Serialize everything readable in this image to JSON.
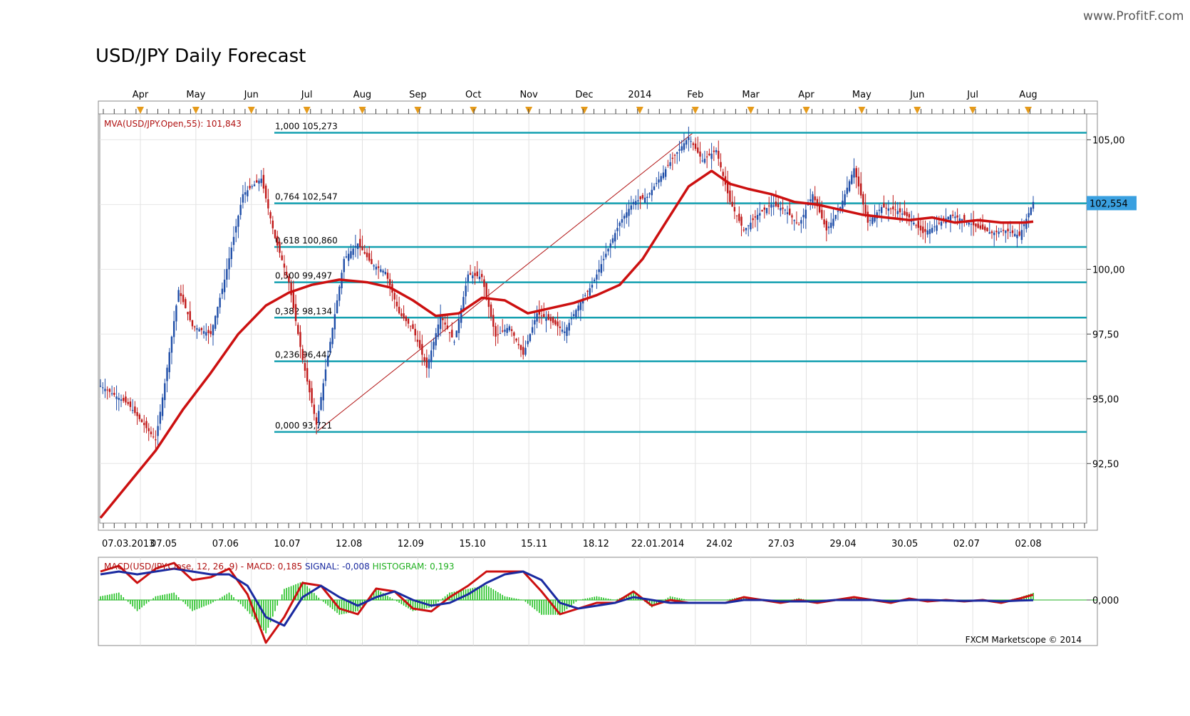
{
  "watermark": "www.ProfitF.com",
  "title": "USD/JPY Daily Forecast",
  "footer": "FXCM Marketscope © 2014",
  "colors": {
    "fib_line": "#14a0b0",
    "mva": "#cc1010",
    "candle_up": "#1f4ea8",
    "candle_down": "#c01818",
    "macd": "#cc1010",
    "signal": "#1a2aa0",
    "histogram": "#20c020",
    "month_marker": "#e59a1a",
    "price_badge": "#3aa0e0"
  },
  "chart_data": {
    "type": "candlestick",
    "title": "USD/JPY Daily Forecast",
    "indicator_label": "MVA(USD/JPY.Open,55): 101,843",
    "month_labels": [
      "Apr",
      "May",
      "Jun",
      "Jul",
      "Aug",
      "Sep",
      "Oct",
      "Nov",
      "Dec",
      "2014",
      "Feb",
      "Mar",
      "Apr",
      "May",
      "Jun",
      "Jul",
      "Aug"
    ],
    "date_labels": [
      "07.03.2013",
      "07.05",
      "07.06",
      "10.07",
      "12.08",
      "12.09",
      "15.10",
      "15.11",
      "18.12",
      "22.01.2014",
      "24.02",
      "27.03",
      "29.04",
      "30.05",
      "02.07",
      "02.08"
    ],
    "y_ticks": [
      "105,00",
      "102,50",
      "100,00",
      "97,50",
      "95,00",
      "92,50"
    ],
    "y_tick_values": [
      105.0,
      102.5,
      100.0,
      97.5,
      95.0,
      92.5
    ],
    "ylim": [
      90.2,
      106.0
    ],
    "current_price_label": "102,554",
    "current_price": 102.554,
    "fib_levels": [
      {
        "label": "1,000 105,273",
        "value": 105.273
      },
      {
        "label": "0,764 102,547",
        "value": 102.547
      },
      {
        "label": "0,618 100,860",
        "value": 100.86
      },
      {
        "label": "0,500 99,497",
        "value": 99.497
      },
      {
        "label": "0,382 98,134",
        "value": 98.134
      },
      {
        "label": "0,236 96,447",
        "value": 96.447
      },
      {
        "label": "0,000 93,721",
        "value": 93.721
      }
    ],
    "price_path": [
      [
        0,
        95.5
      ],
      [
        6,
        94.8
      ],
      [
        12,
        93.4
      ],
      [
        14,
        95.6
      ],
      [
        17,
        99.2
      ],
      [
        20,
        97.8
      ],
      [
        24,
        97.5
      ],
      [
        27,
        99.6
      ],
      [
        31,
        102.9
      ],
      [
        35,
        103.5
      ],
      [
        38,
        101.2
      ],
      [
        41,
        99.5
      ],
      [
        44,
        96.5
      ],
      [
        47,
        94.0
      ],
      [
        50,
        97.2
      ],
      [
        53,
        100.4
      ],
      [
        56,
        101.0
      ],
      [
        59,
        100.2
      ],
      [
        62,
        99.9
      ],
      [
        65,
        98.3
      ],
      [
        68,
        97.7
      ],
      [
        71,
        96.2
      ],
      [
        74,
        98.2
      ],
      [
        77,
        97.2
      ],
      [
        80,
        99.8
      ],
      [
        83,
        99.7
      ],
      [
        86,
        97.4
      ],
      [
        89,
        97.8
      ],
      [
        92,
        96.7
      ],
      [
        95,
        98.3
      ],
      [
        98,
        98.0
      ],
      [
        101,
        97.6
      ],
      [
        104,
        98.6
      ],
      [
        107,
        99.4
      ],
      [
        110,
        100.6
      ],
      [
        113,
        101.8
      ],
      [
        116,
        102.6
      ],
      [
        119,
        102.8
      ],
      [
        122,
        103.6
      ],
      [
        125,
        104.4
      ],
      [
        128,
        105.1
      ],
      [
        131,
        104.2
      ],
      [
        134,
        104.6
      ],
      [
        137,
        102.6
      ],
      [
        140,
        101.5
      ],
      [
        143,
        102.1
      ],
      [
        146,
        102.5
      ],
      [
        149,
        102.3
      ],
      [
        152,
        101.7
      ],
      [
        155,
        102.9
      ],
      [
        158,
        101.5
      ],
      [
        161,
        102.4
      ],
      [
        164,
        103.9
      ],
      [
        167,
        101.8
      ],
      [
        170,
        102.4
      ],
      [
        173,
        102.3
      ],
      [
        176,
        102.0
      ],
      [
        179,
        101.4
      ],
      [
        182,
        101.7
      ],
      [
        185,
        102.1
      ],
      [
        188,
        101.9
      ],
      [
        191,
        101.6
      ],
      [
        194,
        101.4
      ],
      [
        197,
        101.5
      ],
      [
        200,
        101.3
      ],
      [
        203,
        102.6
      ]
    ],
    "mva_path": [
      [
        0,
        90.4
      ],
      [
        6,
        91.7
      ],
      [
        12,
        93.0
      ],
      [
        18,
        94.6
      ],
      [
        24,
        96.0
      ],
      [
        30,
        97.5
      ],
      [
        36,
        98.6
      ],
      [
        41,
        99.1
      ],
      [
        46,
        99.4
      ],
      [
        52,
        99.6
      ],
      [
        58,
        99.5
      ],
      [
        63,
        99.3
      ],
      [
        68,
        98.8
      ],
      [
        73,
        98.2
      ],
      [
        78,
        98.3
      ],
      [
        83,
        98.9
      ],
      [
        88,
        98.8
      ],
      [
        93,
        98.3
      ],
      [
        98,
        98.5
      ],
      [
        103,
        98.7
      ],
      [
        108,
        99.0
      ],
      [
        113,
        99.4
      ],
      [
        118,
        100.4
      ],
      [
        123,
        101.8
      ],
      [
        128,
        103.2
      ],
      [
        133,
        103.8
      ],
      [
        137,
        103.3
      ],
      [
        141,
        103.1
      ],
      [
        146,
        102.9
      ],
      [
        151,
        102.6
      ],
      [
        156,
        102.5
      ],
      [
        161,
        102.3
      ],
      [
        166,
        102.1
      ],
      [
        171,
        102.0
      ],
      [
        176,
        101.9
      ],
      [
        181,
        102.0
      ],
      [
        186,
        101.8
      ],
      [
        191,
        101.9
      ],
      [
        196,
        101.8
      ],
      [
        201,
        101.8
      ],
      [
        203,
        101.84
      ]
    ],
    "macd": {
      "label": "MACD(USD/JPY.Close, 12, 26, 9) -",
      "macd_text": "MACD: 0,185",
      "signal_text": "SIGNAL: -0,008",
      "histogram_text": "HISTOGRAM: 0,193",
      "zero_label": "0,000",
      "ylim": [
        -1.6,
        1.5
      ],
      "macd_path": [
        [
          0,
          1.0
        ],
        [
          4,
          1.2
        ],
        [
          8,
          0.6
        ],
        [
          12,
          1.1
        ],
        [
          16,
          1.3
        ],
        [
          20,
          0.7
        ],
        [
          24,
          0.8
        ],
        [
          28,
          1.1
        ],
        [
          32,
          0.2
        ],
        [
          36,
          -1.5
        ],
        [
          40,
          -0.6
        ],
        [
          44,
          0.6
        ],
        [
          48,
          0.5
        ],
        [
          52,
          -0.3
        ],
        [
          56,
          -0.5
        ],
        [
          60,
          0.4
        ],
        [
          64,
          0.3
        ],
        [
          68,
          -0.3
        ],
        [
          72,
          -0.4
        ],
        [
          76,
          0.1
        ],
        [
          80,
          0.5
        ],
        [
          84,
          1.0
        ],
        [
          88,
          1.0
        ],
        [
          92,
          1.0
        ],
        [
          96,
          0.3
        ],
        [
          100,
          -0.5
        ],
        [
          104,
          -0.3
        ],
        [
          108,
          -0.1
        ],
        [
          112,
          -0.1
        ],
        [
          116,
          0.3
        ],
        [
          120,
          -0.2
        ],
        [
          124,
          0.0
        ],
        [
          128,
          -0.1
        ],
        [
          132,
          -0.1
        ],
        [
          136,
          -0.1
        ],
        [
          140,
          0.1
        ],
        [
          144,
          0.0
        ],
        [
          148,
          -0.1
        ],
        [
          152,
          0.0
        ],
        [
          156,
          -0.1
        ],
        [
          160,
          0.0
        ],
        [
          164,
          0.1
        ],
        [
          168,
          0.0
        ],
        [
          172,
          -0.1
        ],
        [
          176,
          0.05
        ],
        [
          180,
          -0.05
        ],
        [
          184,
          0.0
        ],
        [
          188,
          -0.05
        ],
        [
          192,
          0.0
        ],
        [
          196,
          -0.1
        ],
        [
          200,
          0.05
        ],
        [
          203,
          0.185
        ]
      ],
      "signal_path": [
        [
          0,
          0.9
        ],
        [
          4,
          1.0
        ],
        [
          8,
          0.9
        ],
        [
          12,
          1.0
        ],
        [
          16,
          1.1
        ],
        [
          20,
          1.0
        ],
        [
          24,
          0.9
        ],
        [
          28,
          0.9
        ],
        [
          32,
          0.5
        ],
        [
          36,
          -0.6
        ],
        [
          40,
          -0.9
        ],
        [
          44,
          0.1
        ],
        [
          48,
          0.5
        ],
        [
          52,
          0.1
        ],
        [
          56,
          -0.2
        ],
        [
          60,
          0.1
        ],
        [
          64,
          0.3
        ],
        [
          68,
          0.0
        ],
        [
          72,
          -0.2
        ],
        [
          76,
          -0.1
        ],
        [
          80,
          0.2
        ],
        [
          84,
          0.6
        ],
        [
          88,
          0.9
        ],
        [
          92,
          1.0
        ],
        [
          96,
          0.7
        ],
        [
          100,
          -0.1
        ],
        [
          104,
          -0.3
        ],
        [
          108,
          -0.2
        ],
        [
          112,
          -0.1
        ],
        [
          116,
          0.1
        ],
        [
          120,
          0.0
        ],
        [
          124,
          -0.1
        ],
        [
          128,
          -0.1
        ],
        [
          132,
          -0.1
        ],
        [
          136,
          -0.1
        ],
        [
          140,
          0.0
        ],
        [
          144,
          0.0
        ],
        [
          148,
          -0.05
        ],
        [
          152,
          -0.05
        ],
        [
          156,
          -0.05
        ],
        [
          160,
          0.0
        ],
        [
          164,
          0.0
        ],
        [
          168,
          0.0
        ],
        [
          172,
          -0.05
        ],
        [
          176,
          0.0
        ],
        [
          180,
          0.0
        ],
        [
          184,
          -0.02
        ],
        [
          188,
          -0.03
        ],
        [
          192,
          -0.02
        ],
        [
          196,
          -0.05
        ],
        [
          200,
          -0.02
        ],
        [
          203,
          -0.008
        ]
      ]
    }
  }
}
